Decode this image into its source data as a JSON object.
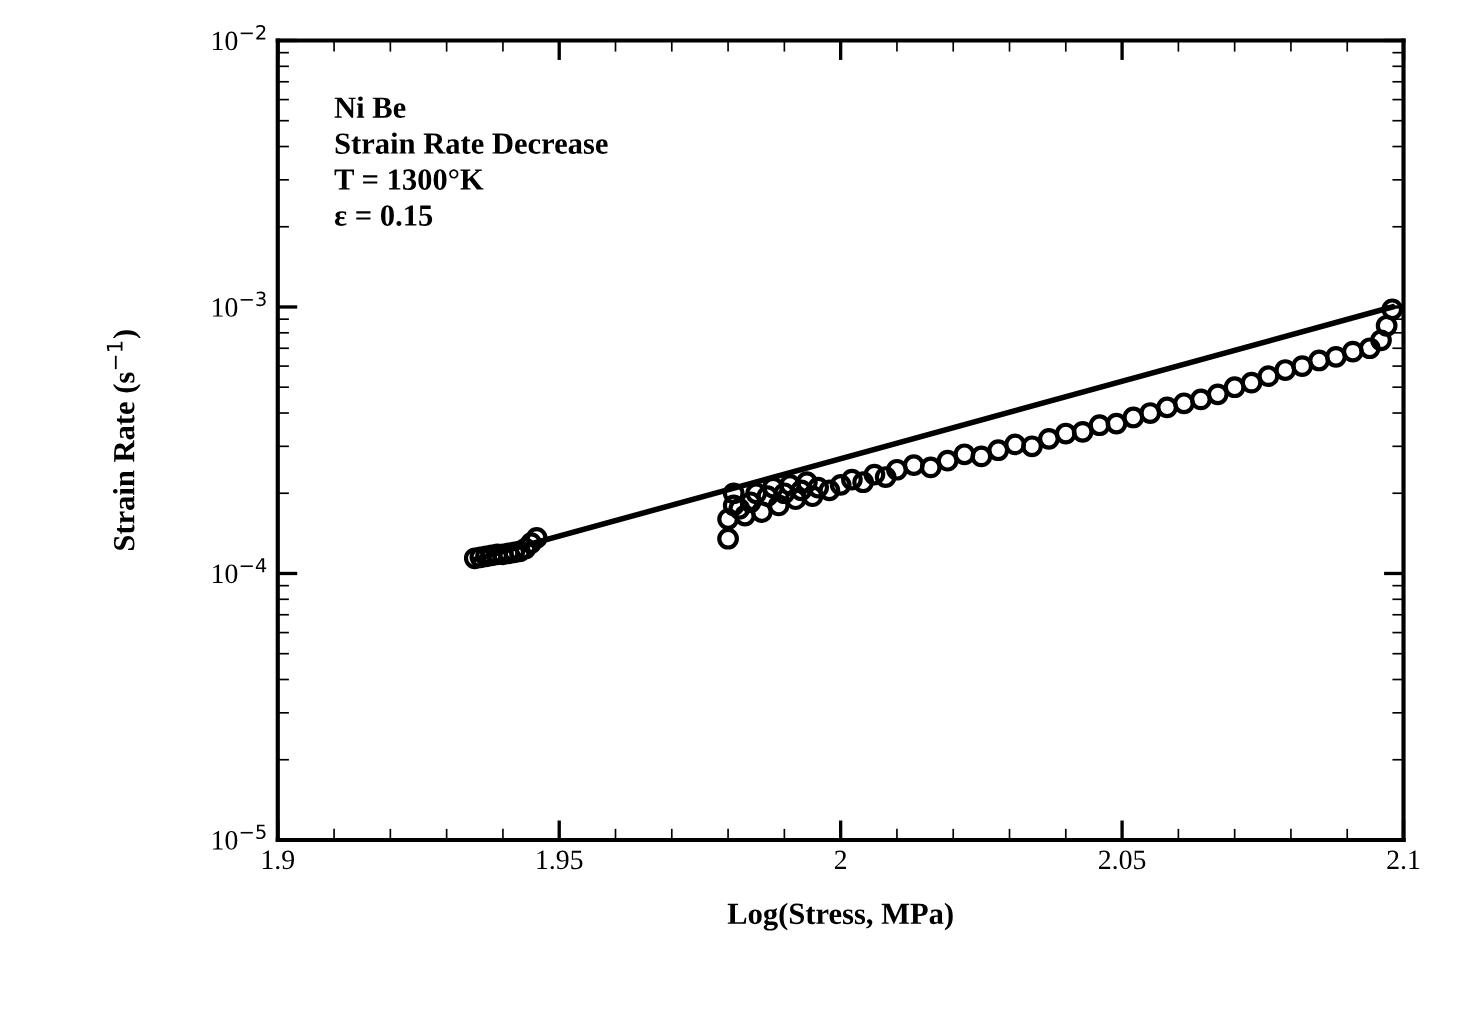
{
  "chart_data": {
    "type": "scatter",
    "xlabel": "Log(Stress, MPa)",
    "ylabel": "Strain Rate (s$^{−1}$)",
    "log": "y",
    "xlim": [
      1.9,
      2.1
    ],
    "xticks": [
      1.9,
      1.95,
      2,
      2.05,
      2.1
    ],
    "ylim": [
      1e-05,
      0.01
    ],
    "yticks": [
      {
        "value": 1e-05,
        "label": "10$^{−5}$"
      },
      {
        "value": 0.0001,
        "label": "10$^{−4}$"
      },
      {
        "value": 0.001,
        "label": "10$^{−3}$"
      },
      {
        "value": 0.01,
        "label": "10$^{−2}$"
      }
    ],
    "grid": false,
    "annotations": [
      "Ni Be",
      "Strain Rate Decrease",
      "T = 1300°K",
      "ε = 0.15"
    ],
    "series": [
      {
        "marker": "circle",
        "color": "#000000",
        "x": [
          1.935,
          1.936,
          1.937,
          1.938,
          1.939,
          1.94,
          1.941,
          1.942,
          1.943,
          1.944,
          1.945,
          1.946,
          1.98,
          1.98,
          1.981,
          1.981,
          1.982,
          1.983,
          1.984,
          1.985,
          1.986,
          1.987,
          1.988,
          1.989,
          1.99,
          1.991,
          1.992,
          1.993,
          1.994,
          1.995,
          1.996,
          1.998,
          2,
          2.002,
          2.004,
          2.006,
          2.008,
          2.01,
          2.013,
          2.016,
          2.019,
          2.022,
          2.025,
          2.028,
          2.031,
          2.034,
          2.037,
          2.04,
          2.043,
          2.046,
          2.049,
          2.052,
          2.055,
          2.058,
          2.061,
          2.064,
          2.067,
          2.07,
          2.073,
          2.076,
          2.079,
          2.082,
          2.085,
          2.088,
          2.091,
          2.094,
          2.096,
          2.097,
          2.098
        ],
        "values": [
          0.000114,
          0.000115,
          0.000116,
          0.000117,
          0.000118,
          0.000118,
          0.000119,
          0.00012,
          0.000121,
          0.000124,
          0.00013,
          0.000136,
          0.000135,
          0.00016,
          0.00018,
          0.0002,
          0.000175,
          0.000165,
          0.000185,
          0.0002,
          0.00017,
          0.000195,
          0.00021,
          0.00018,
          0.0002,
          0.000215,
          0.00019,
          0.000205,
          0.00022,
          0.000195,
          0.00021,
          0.000205,
          0.000215,
          0.000225,
          0.00022,
          0.000235,
          0.00023,
          0.000245,
          0.000255,
          0.00025,
          0.000265,
          0.00028,
          0.000275,
          0.00029,
          0.000305,
          0.0003,
          0.00032,
          0.000335,
          0.00034,
          0.00036,
          0.000365,
          0.000385,
          0.0004,
          0.00042,
          0.000435,
          0.00045,
          0.00047,
          0.0005,
          0.00052,
          0.00055,
          0.00058,
          0.0006,
          0.00063,
          0.00065,
          0.00068,
          0.0007,
          0.00075,
          0.00085,
          0.00098
        ]
      },
      {
        "type": "line",
        "marker": "none",
        "color": "#000000",
        "x": [
          1.935,
          2.098
        ],
        "values": [
          0.000113,
          0.001
        ]
      }
    ]
  }
}
